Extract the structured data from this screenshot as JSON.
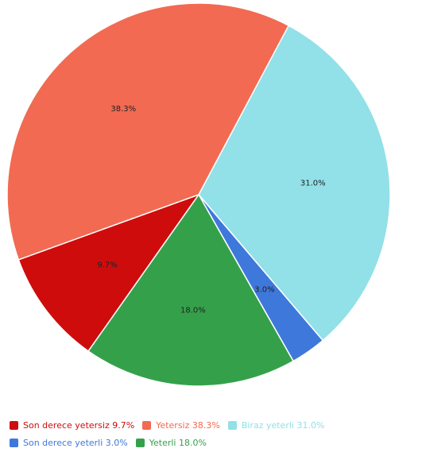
{
  "chart_data": {
    "type": "pie",
    "slices": [
      {
        "label": "Biraz yeterli",
        "value": 31.0,
        "display": "31.0%",
        "color": "#92e0e8"
      },
      {
        "label": "Son derece yeterli",
        "value": 3.0,
        "display": "3.0%",
        "color": "#3f78db"
      },
      {
        "label": "Yeterli",
        "value": 18.0,
        "display": "18.0%",
        "color": "#34a14a"
      },
      {
        "label": "Son derece yetersiz",
        "value": 9.7,
        "display": "9.7%",
        "color": "#cf0c0c"
      },
      {
        "label": "Yetersiz",
        "value": 38.3,
        "display": "38.3%",
        "color": "#f26a52"
      }
    ],
    "legend": {
      "placement": "bottom",
      "rows": [
        [
          {
            "text": "Son derece yetersiz 9.7%",
            "color": "#cf0c0c"
          },
          {
            "text": "Yetersiz 38.3%",
            "color": "#f26a52"
          },
          {
            "text": "Biraz yeterli 31.0%",
            "color": "#92e0e8"
          }
        ],
        [
          {
            "text": "Son derece yeterli 3.0%",
            "color": "#3f78db"
          },
          {
            "text": "Yeterli 18.0%",
            "color": "#34a14a"
          }
        ]
      ]
    }
  }
}
